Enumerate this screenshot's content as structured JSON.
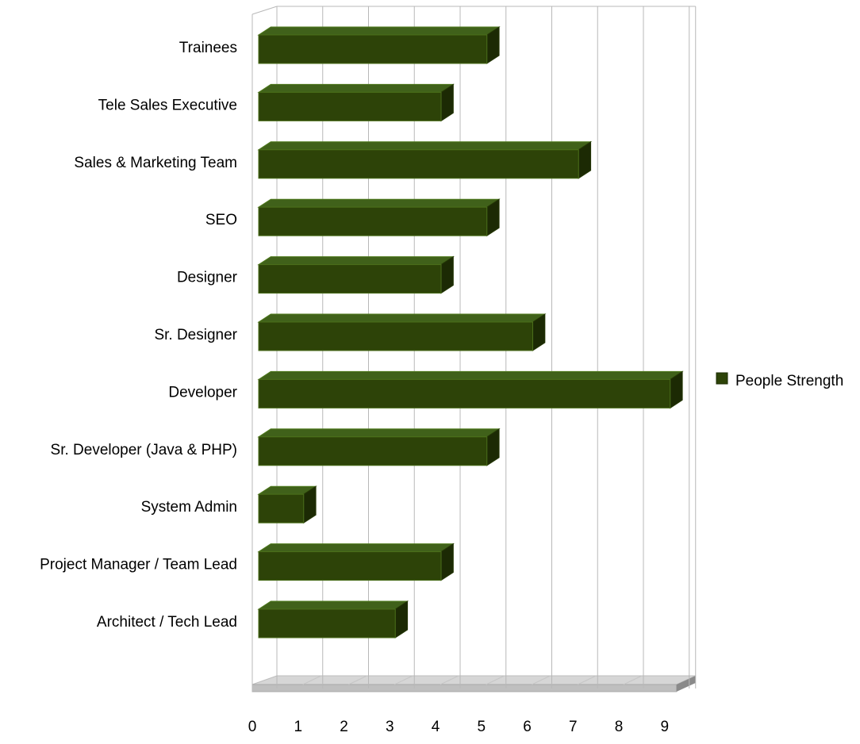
{
  "chart_data": {
    "type": "bar",
    "orientation": "horizontal",
    "style": "3d",
    "categories": [
      "Trainees",
      "Tele Sales Executive",
      "Sales & Marketing Team",
      "SEO",
      "Designer",
      "Sr. Designer",
      "Developer",
      "Sr. Developer (Java & PHP)",
      "System Admin",
      "Project Manager / Team Lead",
      "Architect / Tech Lead"
    ],
    "series": [
      {
        "name": "People Strength",
        "values": [
          5,
          4,
          7,
          5,
          4,
          6,
          9,
          5,
          1,
          4,
          3
        ],
        "color": "#2d4308"
      }
    ],
    "xlim": [
      0,
      9
    ],
    "xticks": [
      "0",
      "1",
      "2",
      "3",
      "4",
      "5",
      "6",
      "7",
      "8",
      "9"
    ],
    "grid": true,
    "legend_position": "right"
  }
}
